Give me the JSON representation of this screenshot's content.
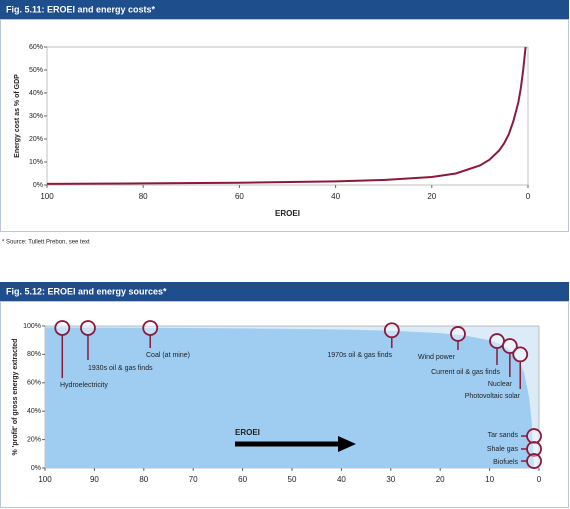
{
  "chart_data": [
    {
      "type": "line",
      "title": "Fig. 5.11: EROEI and energy costs*",
      "ylabel": "Energy cost as % of GDP",
      "xlabel": "EROEI",
      "footnote": "* Source: Tullett Prebon, see text",
      "xlim": [
        100,
        0
      ],
      "ylim": [
        0,
        60
      ],
      "xticks": [
        100,
        80,
        60,
        40,
        20,
        0
      ],
      "yticks": [
        {
          "value": 0,
          "label": "0%"
        },
        {
          "value": 10,
          "label": "10%"
        },
        {
          "value": 20,
          "label": "20%"
        },
        {
          "value": 30,
          "label": "30%"
        },
        {
          "value": 40,
          "label": "40%"
        },
        {
          "value": 50,
          "label": "50%"
        },
        {
          "value": 60,
          "label": "60%"
        }
      ],
      "series": [
        {
          "color": "#8b1a3a",
          "x": [
            100,
            80,
            60,
            40,
            30,
            20,
            15,
            10,
            8,
            6,
            5,
            4,
            3,
            2,
            1.5,
            1,
            0.7,
            0.5
          ],
          "values": [
            0.5,
            0.7,
            1.0,
            1.6,
            2.2,
            3.5,
            5,
            8.5,
            11,
            15,
            18,
            22,
            28,
            36,
            42,
            50,
            56,
            60
          ]
        }
      ]
    },
    {
      "type": "area",
      "title": "Fig. 5.12: EROEI and energy sources*",
      "ylabel": "% 'profit' of gross energy extracted",
      "arrow_label": "EROEI",
      "xlim": [
        100,
        0
      ],
      "ylim": [
        0,
        100
      ],
      "xticks": [
        100,
        90,
        80,
        70,
        60,
        50,
        40,
        30,
        20,
        10,
        0
      ],
      "yticks": [
        {
          "value": 0,
          "label": "0%"
        },
        {
          "value": 20,
          "label": "20%"
        },
        {
          "value": 40,
          "label": "40%"
        },
        {
          "value": 60,
          "label": "60%"
        },
        {
          "value": 80,
          "label": "80%"
        },
        {
          "value": 100,
          "label": "100%"
        }
      ],
      "series": [
        {
          "color": "#9fcdf2",
          "x": [
            100,
            80,
            60,
            40,
            30,
            20,
            15,
            10,
            8,
            6,
            5,
            4,
            3,
            2,
            1.5,
            1
          ],
          "values": [
            99,
            98.75,
            98.3,
            97.5,
            96.7,
            95,
            93.3,
            90,
            87.5,
            83.3,
            80,
            75,
            66.7,
            50,
            33.3,
            0
          ]
        }
      ],
      "annotations": [
        {
          "label": "Hydroelectricity",
          "x": 96.5,
          "y": 98.6
        },
        {
          "label": "1930s oil & gas finds",
          "x": 91.3,
          "y": 98.6
        },
        {
          "label": "Coal (at mine)",
          "x": 78.7,
          "y": 98.6
        },
        {
          "label": "1970s oil & gas finds",
          "x": 29.8,
          "y": 97
        },
        {
          "label": "Wind power",
          "x": 16.4,
          "y": 94.4
        },
        {
          "label": "Current oil & gas finds",
          "x": 8.5,
          "y": 89.4
        },
        {
          "label": "Nuclear",
          "x": 5.9,
          "y": 85.9
        },
        {
          "label": "Photovoltaic solar",
          "x": 3.8,
          "y": 80
        },
        {
          "label": "Tar sands",
          "x": 1,
          "y": 22.5
        },
        {
          "label": "Shale gas",
          "x": 1,
          "y": 13.4
        },
        {
          "label": "Biofuels",
          "x": 1,
          "y": 4.9
        }
      ]
    }
  ]
}
